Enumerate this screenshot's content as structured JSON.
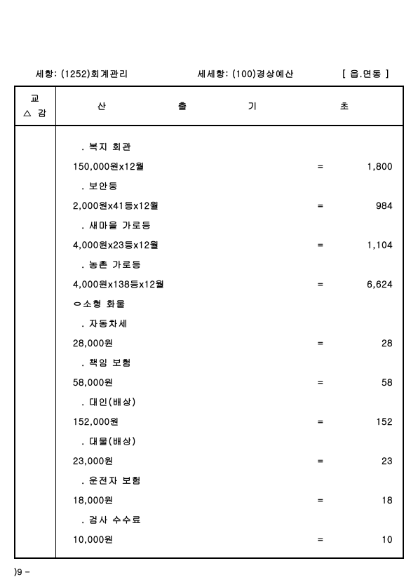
{
  "header": {
    "left_label": "세항:",
    "left_code": "(1252)회계관리",
    "mid_label": "세세항:",
    "mid_code": "(100)경상예산",
    "right": "[ 읍.면동   ]"
  },
  "columns": {
    "col1_top": "교",
    "col1_bot": "△ 감",
    "san": "산",
    "chul": "출",
    "gi": "기",
    "cho": "초"
  },
  "rows": [
    {
      "type": "label",
      "indent": 1,
      "text": ". 복지 회관"
    },
    {
      "type": "calc",
      "indent": 2,
      "text": "150,000원x12월",
      "eq": "=",
      "val": "1,800"
    },
    {
      "type": "label",
      "indent": 1,
      "text": ". 보안둥"
    },
    {
      "type": "calc",
      "indent": 2,
      "text": "2,000원x41등x12월",
      "eq": "=",
      "val": "984"
    },
    {
      "type": "label",
      "indent": 1,
      "text": ". 새마을 가로등"
    },
    {
      "type": "calc",
      "indent": 2,
      "text": "4,000원x23등x12월",
      "eq": "=",
      "val": "1,104"
    },
    {
      "type": "label",
      "indent": 1,
      "text": ". 농촌 가로등"
    },
    {
      "type": "calc",
      "indent": 2,
      "text": "4,000원x138등x12월",
      "eq": "=",
      "val": "6,624"
    },
    {
      "type": "label",
      "indent": 2,
      "text": "ㅇ소형 화물"
    },
    {
      "type": "label",
      "indent": 1,
      "text": ". 자동차세"
    },
    {
      "type": "calc",
      "indent": 2,
      "text": "28,000원",
      "eq": "=",
      "val": "28"
    },
    {
      "type": "label",
      "indent": 1,
      "text": ". 책임 보험"
    },
    {
      "type": "calc",
      "indent": 2,
      "text": "58,000원",
      "eq": "=",
      "val": "58"
    },
    {
      "type": "label",
      "indent": 1,
      "text": ". 대인(배상)"
    },
    {
      "type": "calc",
      "indent": 2,
      "text": "152,000원",
      "eq": "=",
      "val": "152"
    },
    {
      "type": "label",
      "indent": 1,
      "text": ". 대물(배상)"
    },
    {
      "type": "calc",
      "indent": 2,
      "text": "23,000원",
      "eq": "=",
      "val": "23"
    },
    {
      "type": "label",
      "indent": 1,
      "text": ". 운전자 보험"
    },
    {
      "type": "calc",
      "indent": 2,
      "text": "18,000원",
      "eq": "=",
      "val": "18"
    },
    {
      "type": "label",
      "indent": 1,
      "text": ". 검사 수수료"
    },
    {
      "type": "calc",
      "indent": 2,
      "text": "10,000원",
      "eq": "=",
      "val": "10"
    }
  ],
  "footer": ")9 -"
}
